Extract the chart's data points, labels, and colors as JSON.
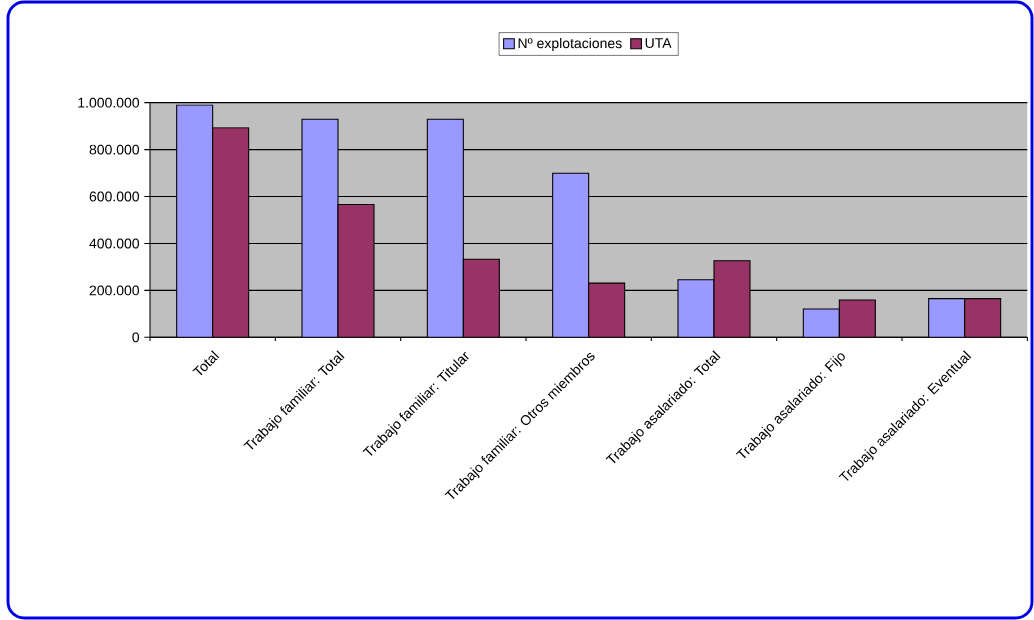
{
  "chart_data": {
    "type": "bar",
    "categories": [
      "Total",
      "Trabajo familiar: Total",
      "Trabajo familiar: Titular",
      "Trabajo familiar: Otros miembros",
      "Trabajo asalariado: Total",
      "Trabajo asalariado: Fijo",
      "Trabajo asalariado: Eventual"
    ],
    "series": [
      {
        "name": "Nº explotaciones",
        "color": "#9999ff",
        "values": [
          990000,
          929000,
          929000,
          699000,
          245000,
          121000,
          165000
        ]
      },
      {
        "name": "UTA",
        "color": "#993366",
        "values": [
          893000,
          566000,
          333000,
          231000,
          326000,
          159000,
          165000
        ]
      }
    ],
    "ylim": [
      0,
      1000000
    ],
    "yticks": [
      {
        "value": 0,
        "label": "0"
      },
      {
        "value": 200000,
        "label": "200.000"
      },
      {
        "value": 400000,
        "label": "400.000"
      },
      {
        "value": 600000,
        "label": "600.000"
      },
      {
        "value": 800000,
        "label": "800.000"
      },
      {
        "value": 1000000,
        "label": "1.000.000"
      }
    ],
    "grid": "y",
    "legend": "top"
  }
}
